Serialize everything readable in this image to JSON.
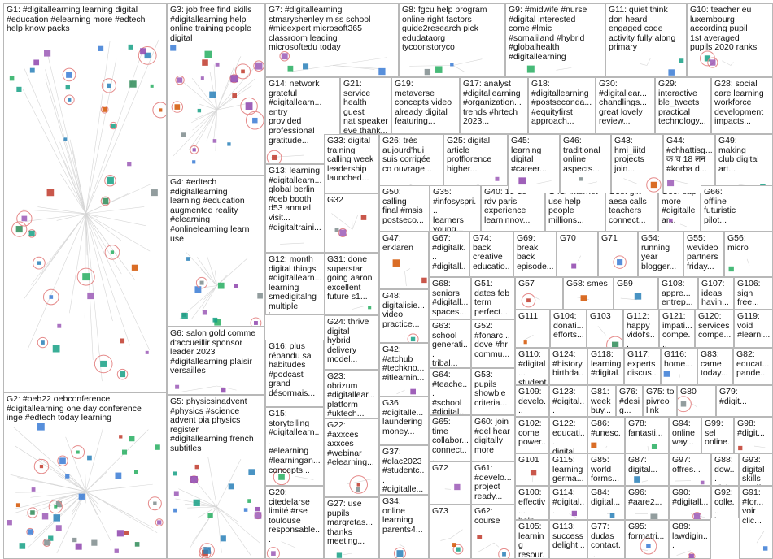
{
  "groups": [
    {
      "id": "G1",
      "label": "G1: #digitallearning learning digital\n#education #elearning more #edtech\nhelp know packs"
    },
    {
      "id": "G2",
      "label": "G2: #oeb22 oebconference\n#digitallearning one day conference\ninge #edtech today learning"
    },
    {
      "id": "G3",
      "label": "G3: job free find skills\n#digitallearning help\nonline training people\ndigital"
    },
    {
      "id": "G4",
      "label": "G4: #edtech\n#digitallearning\nlearning #education\naugmented reality\n#elearning\n#onlinelearning learn\nuse"
    },
    {
      "id": "G5",
      "label": "G5: physicsinadvent\n#physics #science\nadvent pia physics\nregister\n#digitallearning french\nsubtitles"
    },
    {
      "id": "G6",
      "label": "G6: salon gold comme\nd'accueillir sponsor\nleader 2023\n#digitallearning plaisir\nversailles"
    },
    {
      "id": "G7",
      "label": "G7: #digitallearning\nstmaryshenley miss school\n#mieexpert microsoft365\nclassroom leading\nmicrosoftedu today"
    },
    {
      "id": "G8",
      "label": "G8: fgcu help program\nonline right factors\nguide2research pick\nedudataorg\ntycoonstoryco"
    },
    {
      "id": "G9",
      "label": "G9: #midwife #nurse\n#digital interested\ncome #lmic\n#somaliland #hybrid\n#globalhealth\n#digitallearning"
    },
    {
      "id": "G10",
      "label": "G10: teacher eu\nluxembourg\naccording pupil\n1st averaged\npupils 2020 ranks"
    },
    {
      "id": "G11",
      "label": "G11: quiet think\ndon heard\nengaged code\nactivity fully along\nprimary"
    },
    {
      "id": "G12",
      "label": "G12: month\ndigital things\n#digitallearn...\nlearning\nsmedigitalng\nmultiple\nimage..."
    },
    {
      "id": "G13",
      "label": "G13: learning\n#digitallearn...\nglobal berlin\n#oeb booth\nd53 annual\nvisit...\n#digitaltraini..."
    },
    {
      "id": "G14",
      "label": "G14: network\ngrateful\n#digitallearn...\nentry\nprovided\nprofessional\ngratitude..."
    },
    {
      "id": "G15",
      "label": "G15:\nstorytelling\n#digitallearn...\n#elearning\n#learningan...\nconcepts..."
    },
    {
      "id": "G16",
      "label": "G16: plus\nrépandu sa\nhabitudes\n#podcast\ngrand\ndésormais..."
    },
    {
      "id": "G17",
      "label": "G17: analyst\n#digitallearning\n#organization...\ntrends #hrtech\n2023..."
    },
    {
      "id": "G18",
      "label": "G18:\n#digitallearning\n#postseconda...\n#equityfirst\napproach..."
    },
    {
      "id": "G19",
      "label": "G19:\nmetaverse\nconcepts video\nalready digital\nfeaturing..."
    },
    {
      "id": "G20",
      "label": "G20:\ncitedelarse\nlimité #rse\ntoulouse\nresponsable..."
    },
    {
      "id": "G21",
      "label": "G21: service\nhealth guest\nnat speaker\neve thank...\nlibrarian..."
    },
    {
      "id": "G22",
      "label": "G22:\n#axxces\naxxces\n#webinar\n#elearning..."
    },
    {
      "id": "G23",
      "label": "G23:\nobrizum\n#digitallear...\nplatform\n#uktech..."
    },
    {
      "id": "G24",
      "label": "G24: thrive\ndigital\nhybrid\ndelivery\nmodel..."
    },
    {
      "id": "G25",
      "label": "G25: digital\narticle\nprofflorence\nhigher..."
    },
    {
      "id": "G26",
      "label": "G26: très\naujourd'hui\nsuis corrigée\nco ouvrage..."
    },
    {
      "id": "G27",
      "label": "G27: use\npupils\nmargretas...\nthanks\nmeeting..."
    },
    {
      "id": "G28",
      "label": "G28: social\ncare learning\nworkforce\ndevelopment\nimpacts..."
    },
    {
      "id": "G29",
      "label": "G29:\ninteractive\nble_tweets\npractical\ntechnology..."
    },
    {
      "id": "G30",
      "label": "G30:\n#digitallear...\nchandlings...\ngreat lovely\nreview..."
    },
    {
      "id": "G31",
      "label": "G31: done\nsuperstar\ngoing aaron\nexcellent\nfuture s1..."
    },
    {
      "id": "G32",
      "label": "G32"
    },
    {
      "id": "G33",
      "label": "G33: digital\ntraining\ncalling week\nleadership\nlaunched..."
    },
    {
      "id": "G34",
      "label": "G34:\nonline\nlearning\nparents4..."
    },
    {
      "id": "G35",
      "label": "G35:\n#infosyspri...\nlearners\nyoung..."
    },
    {
      "id": "G36",
      "label": "G36:\n#digitalle...\nlaundering\nmoney..."
    },
    {
      "id": "G37",
      "label": "G37:\n#dlac2023\n#studentc...\n#digitalle..."
    },
    {
      "id": "G38",
      "label": "G38: gift\naesa calls\nteachers\nconnect..."
    },
    {
      "id": "G39",
      "label": "G39: sap\nmore\n#digitallear..."
    },
    {
      "id": "G40",
      "label": "G40: 15 16\nrdv paris\nexperience\nlearninnov..."
    },
    {
      "id": "G41",
      "label": "G41: internet\nuse help\npeople\nmillions..."
    },
    {
      "id": "G42",
      "label": "G42:\n#atchub\n#techkno...\n#itlearnin..."
    },
    {
      "id": "G43",
      "label": "G43:\nhmi_iiitd\nprojects\njoin..."
    },
    {
      "id": "G44",
      "label": "G44:\n#chhattisg...\nक च 18 लन\n#korba d..."
    },
    {
      "id": "G45",
      "label": "G45:\nlearning\ndigital\n#career..."
    },
    {
      "id": "G46",
      "label": "G46:\ntraditional\nonline\naspects..."
    },
    {
      "id": "G47",
      "label": "G47:\nerklären"
    },
    {
      "id": "G48",
      "label": "G48:\ndigitalisie...\nvideo\npractice..."
    },
    {
      "id": "G49",
      "label": "G49:\nmaking\nclub digital\nart..."
    },
    {
      "id": "G50",
      "label": "G50:\ncalling\nfinal #msis\npostseco..."
    },
    {
      "id": "G51",
      "label": "G51:\ndates feb\nterm\nperfect..."
    },
    {
      "id": "G52",
      "label": "G52:\n#fonarc...\ndove #hr\ncommu..."
    },
    {
      "id": "G53",
      "label": "G53:\npupils\nshowbie\ncriteria..."
    },
    {
      "id": "G54",
      "label": "G54:\nrunning\nyear\nblogger..."
    },
    {
      "id": "G55",
      "label": "G55:\nwevideo\npartners\nfriday..."
    },
    {
      "id": "G56",
      "label": "G56:\nmicro"
    },
    {
      "id": "G57",
      "label": "G57"
    },
    {
      "id": "G58",
      "label": "G58: smes"
    },
    {
      "id": "G59",
      "label": "G59"
    },
    {
      "id": "G60",
      "label": "G60: join\n#del hear\ndigitally\nmore"
    },
    {
      "id": "G61",
      "label": "G61:\n#develo...\nproject\nready..."
    },
    {
      "id": "G62",
      "label": "G62:\ncourse"
    },
    {
      "id": "G63",
      "label": "G63:\nschool\ngenerati...\ntribal..."
    },
    {
      "id": "G64",
      "label": "G64:\n#teache...\n#school\n#digital..."
    },
    {
      "id": "G65",
      "label": "G65:\ntime\ncollabor...\nconnect..."
    },
    {
      "id": "G66",
      "label": "G66:\noffline\nfuturistic\npilot..."
    },
    {
      "id": "G67",
      "label": "G67:\n#digitalk...\n#digitall...\ncall..."
    },
    {
      "id": "G68",
      "label": "G68:\nseniors\n#digitall...\nspaces..."
    },
    {
      "id": "G69",
      "label": "G69:\nbreak\nback\nepisode..."
    },
    {
      "id": "G70",
      "label": "G70"
    },
    {
      "id": "G71",
      "label": "G71"
    },
    {
      "id": "G72",
      "label": "G72"
    },
    {
      "id": "G73",
      "label": "G73"
    },
    {
      "id": "G74",
      "label": "G74:\nback\ncreative\neducatio..."
    },
    {
      "id": "G75",
      "label": "G75: to\npivreo\nlink gt..."
    },
    {
      "id": "G76",
      "label": "G76:\n#desig...\nlandin..."
    },
    {
      "id": "G77",
      "label": "G77:\ndudas\ncontact..."
    },
    {
      "id": "G78",
      "label": "G78:\nfantasti..."
    },
    {
      "id": "G79",
      "label": "G79:\n#digit..."
    },
    {
      "id": "G80",
      "label": "G80"
    },
    {
      "id": "G81",
      "label": "G81:\nweek\nbuy..."
    },
    {
      "id": "G82",
      "label": "G82:\neducat...\npande..."
    },
    {
      "id": "G83",
      "label": "G83:\ncame\ntoday..."
    },
    {
      "id": "G84",
      "label": "G84:\ndigital..."
    },
    {
      "id": "G85",
      "label": "G85:\nworld\nforms..."
    },
    {
      "id": "G86",
      "label": "G86:\n#unesc..."
    },
    {
      "id": "G87",
      "label": "G87:\ndigital..."
    },
    {
      "id": "G88",
      "label": "G88:\ndow...\ndigi...\nlink..."
    },
    {
      "id": "G89",
      "label": "G89:\nlawdigin..."
    },
    {
      "id": "G90",
      "label": "G90:\n#digitall..."
    },
    {
      "id": "G91",
      "label": "G91:\n#for...\nvoir\nclic..."
    },
    {
      "id": "G92",
      "label": "G92:\ncolle...\nlast"
    },
    {
      "id": "G93",
      "label": "G93:\ndigital\nskills\ncertif..."
    },
    {
      "id": "G94",
      "label": "G94:\nonline\nway..."
    },
    {
      "id": "G95",
      "label": "G95:\nformatri..."
    },
    {
      "id": "G96",
      "label": "G96:\n#aare2..."
    },
    {
      "id": "G97",
      "label": "G97:\noffres..."
    },
    {
      "id": "G98",
      "label": "G98:\n#digit..."
    },
    {
      "id": "G99",
      "label": "G99:\nsel\nonline..."
    },
    {
      "id": "G100",
      "label": "G100:\neffectiv...\nhelp..."
    },
    {
      "id": "G101",
      "label": "G101"
    },
    {
      "id": "G102",
      "label": "G102:\ncome\npower..."
    },
    {
      "id": "G103",
      "label": "G103"
    },
    {
      "id": "G104",
      "label": "G104:\ndonati...\nefforts..."
    },
    {
      "id": "G105",
      "label": "G105:\nlearning\nresour..."
    },
    {
      "id": "G106",
      "label": "G106:\nsign\nfree..."
    },
    {
      "id": "G107",
      "label": "G107:\nideas\nhavin..."
    },
    {
      "id": "G108",
      "label": "G108:\nappre...\nentrep..."
    },
    {
      "id": "G109",
      "label": "G109:\ndevelo...\nonline..."
    },
    {
      "id": "G110",
      "label": "G110:\n#digital...\nstudents"
    },
    {
      "id": "G111",
      "label": "G111"
    },
    {
      "id": "G112",
      "label": "G112:\nhappy\nvidol's..."
    },
    {
      "id": "G113",
      "label": "G113:\nsuccess\ndelight..."
    },
    {
      "id": "G114",
      "label": "G114:\n#digital..."
    },
    {
      "id": "G115",
      "label": "G115:\nlearning\ngerma..."
    },
    {
      "id": "G116",
      "label": "G116:\nhome..."
    },
    {
      "id": "G117",
      "label": "G117:\nexperts\ndiscus..."
    },
    {
      "id": "G118",
      "label": "G118:\nlearning\n#digital..."
    },
    {
      "id": "G119",
      "label": "G119:\nvoid\n#learni..."
    },
    {
      "id": "G120",
      "label": "G120:\nservices\ncompe..."
    },
    {
      "id": "G121",
      "label": "G121:\nimpati...\ncompe..."
    },
    {
      "id": "G122",
      "label": "G122:\neducati...\ndigital..."
    },
    {
      "id": "G123",
      "label": "G123:\n#digital...\nsucces..."
    },
    {
      "id": "G124",
      "label": "G124:\n#history\nbirthda..."
    }
  ]
}
